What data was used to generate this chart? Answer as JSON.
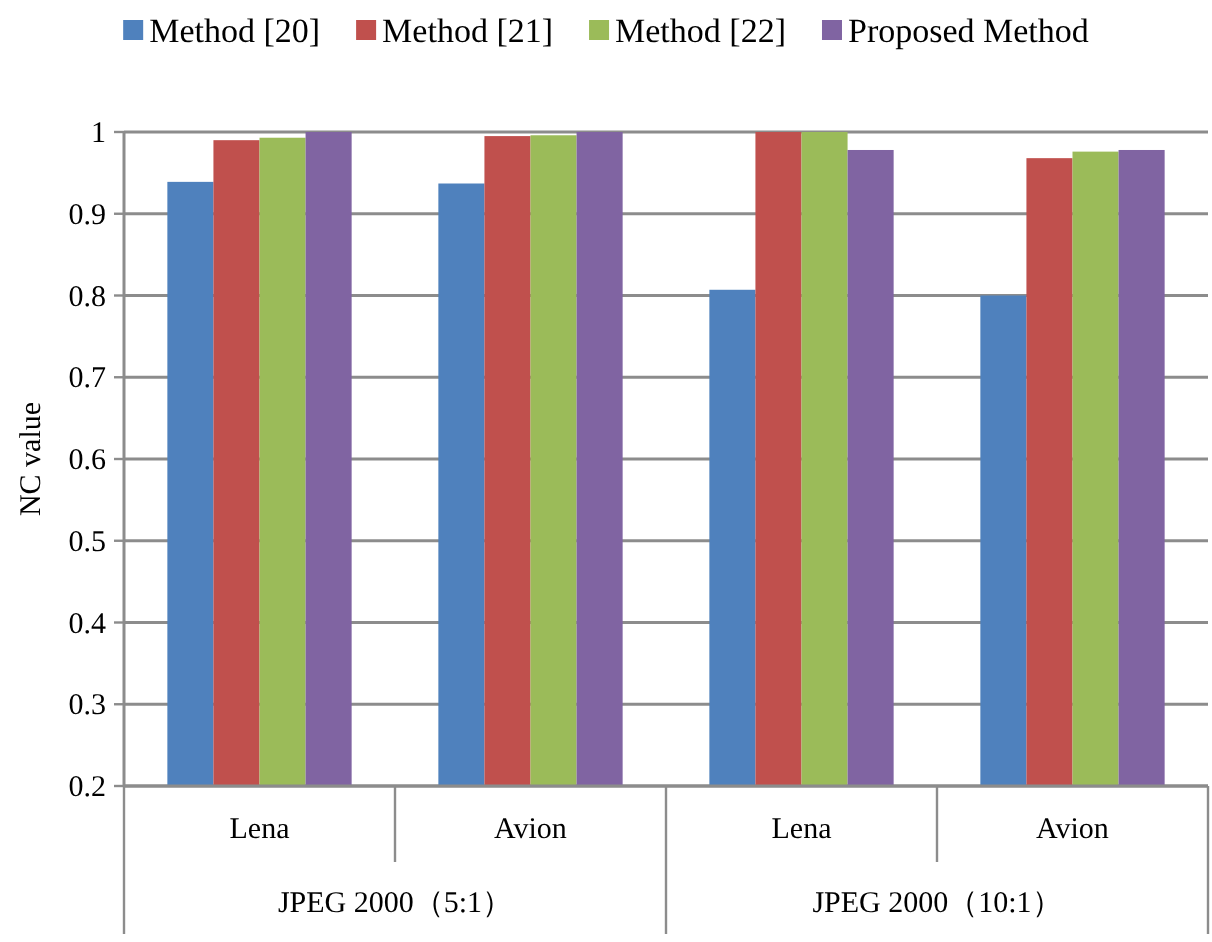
{
  "chart_data": {
    "type": "bar",
    "ylabel": "NC value",
    "categories": [
      "Lena",
      "Avion",
      "Lena",
      "Avion"
    ],
    "series": [
      {
        "name": "Method [20]",
        "color": "#4f81bd",
        "values": [
          0.939,
          0.937,
          0.807,
          0.8
        ]
      },
      {
        "name": "Method [21]",
        "color": "#c0504d",
        "values": [
          0.99,
          0.995,
          1,
          0.968
        ]
      },
      {
        "name": "Method [22]",
        "color": "#9bbb59",
        "values": [
          0.993,
          0.996,
          1,
          0.976
        ]
      },
      {
        "name": "Proposed Method",
        "color": "#8064a2",
        "values": [
          1,
          1,
          0.978,
          0.978
        ]
      }
    ],
    "ylim": [
      0.2,
      1
    ],
    "yticks": [
      0.2,
      0.3,
      0.4,
      0.5,
      0.6,
      0.7,
      0.8,
      0.9,
      1
    ],
    "grid": "y",
    "legend": "top",
    "annotations": [
      "JPEG 2000（5:1）",
      "JPEG 2000（10:1）"
    ]
  }
}
